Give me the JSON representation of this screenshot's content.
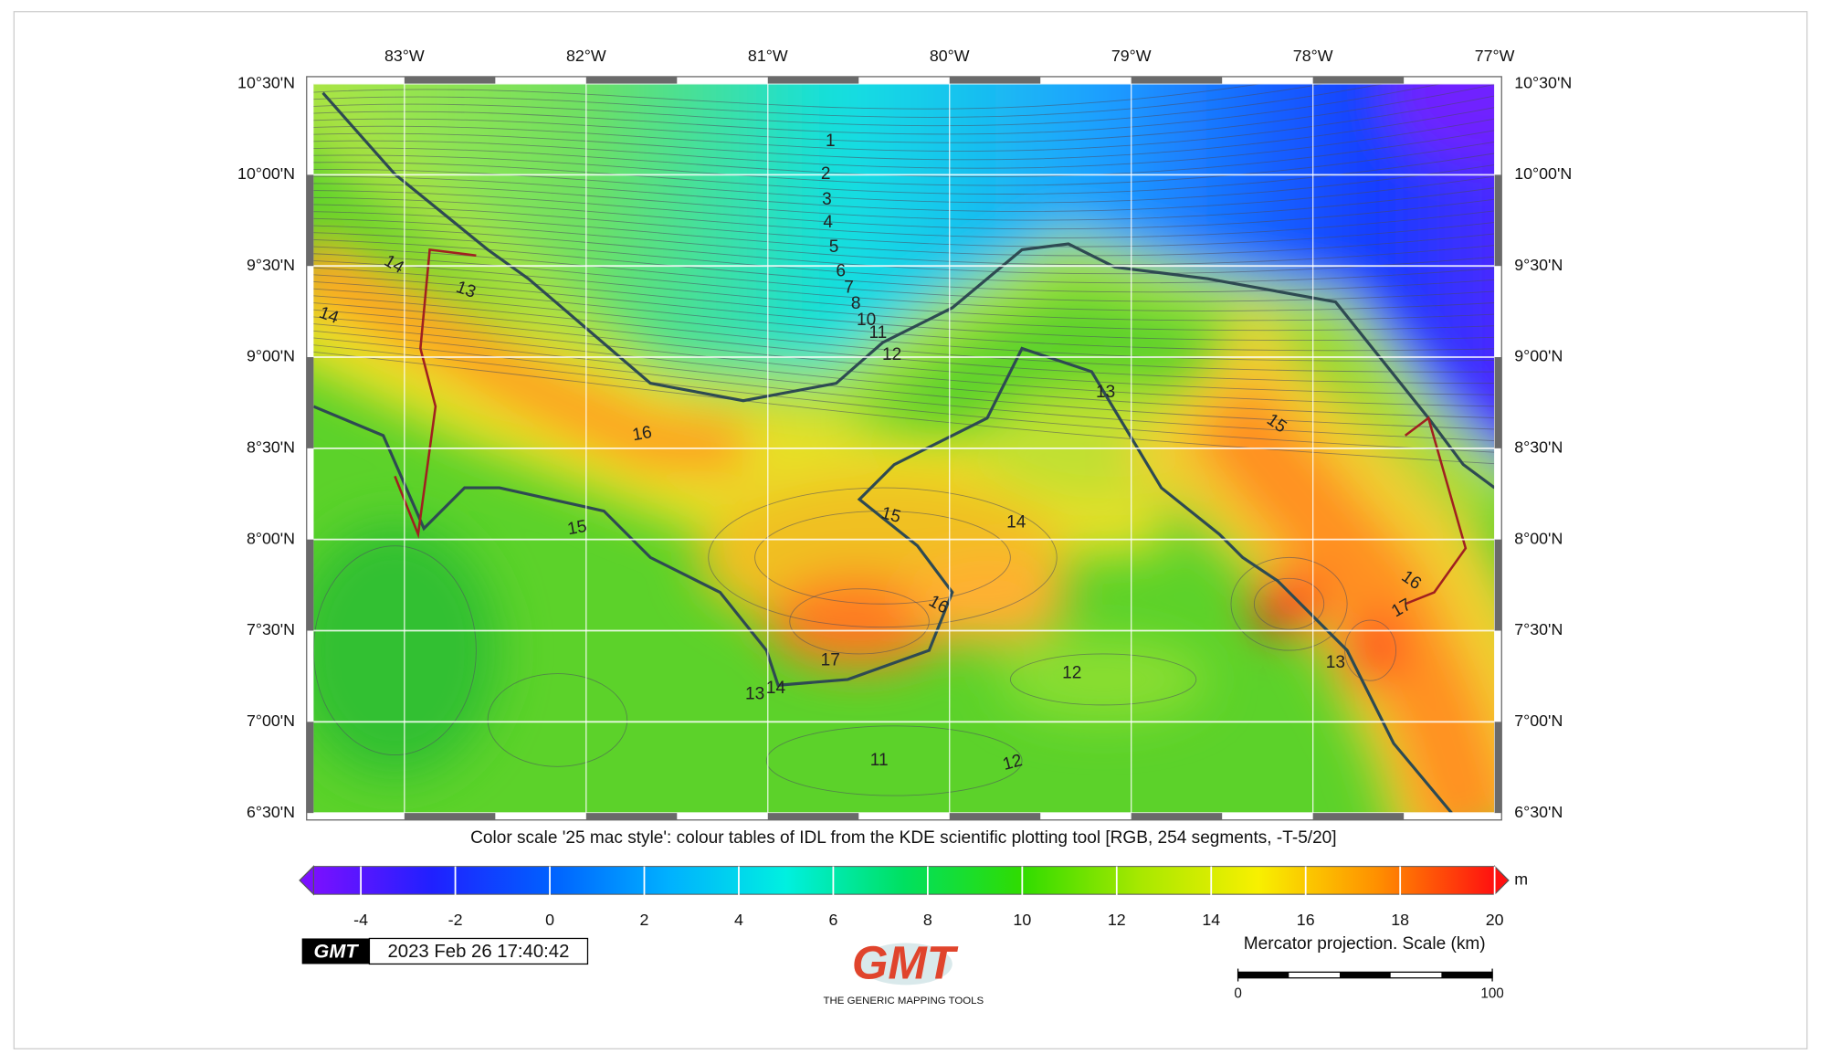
{
  "map": {
    "lonlim": [
      -83.5,
      -77
    ],
    "latlim": [
      6.5,
      10.5
    ],
    "lon_ticks": [
      {
        "value": -83,
        "label": "83°W"
      },
      {
        "value": -82,
        "label": "82°W"
      },
      {
        "value": -81,
        "label": "81°W"
      },
      {
        "value": -80,
        "label": "80°W"
      },
      {
        "value": -79,
        "label": "79°W"
      },
      {
        "value": -78,
        "label": "78°W"
      },
      {
        "value": -77,
        "label": "77°W"
      }
    ],
    "lat_ticks": [
      {
        "value": 6.5,
        "label": "6°30'N"
      },
      {
        "value": 7,
        "label": "7°00'N"
      },
      {
        "value": 7.5,
        "label": "7°30'N"
      },
      {
        "value": 8,
        "label": "8°00'N"
      },
      {
        "value": 8.5,
        "label": "8°30'N"
      },
      {
        "value": 9,
        "label": "9°00'N"
      },
      {
        "value": 9.5,
        "label": "9°30'N"
      },
      {
        "value": 10,
        "label": "10°00'N"
      },
      {
        "value": 10.5,
        "label": "10°30'N"
      }
    ],
    "contour_labels": [
      1,
      2,
      3,
      4,
      5,
      6,
      7,
      8,
      10,
      11,
      12,
      13,
      14,
      13,
      14,
      16,
      15,
      15,
      15,
      14,
      16,
      17,
      13,
      14,
      12,
      11,
      12,
      13,
      16,
      17
    ]
  },
  "colorbar": {
    "title": "Color scale '25 mac style': colour tables of IDL from the KDE scientific plotting tool [RGB, 254 segments, -T-5/20]",
    "unit": "m",
    "lim": [
      -5,
      20
    ],
    "ticks": [
      -4,
      -2,
      0,
      2,
      4,
      6,
      8,
      10,
      12,
      14,
      16,
      18,
      20
    ],
    "colors": [
      "#7a10ff",
      "#2020ff",
      "#0060ff",
      "#00b0ff",
      "#00f0e0",
      "#00e060",
      "#30dc00",
      "#a8e800",
      "#f8f000",
      "#ff9000",
      "#ff1010"
    ]
  },
  "timestamp": {
    "logo": "GMT",
    "text": "2023 Feb 26 17:40:42"
  },
  "logo": {
    "text": "GMT",
    "subtitle": "THE GENERIC MAPPING TOOLS"
  },
  "scale_bar": {
    "title": "Mercator projection. Scale (km)",
    "ticks": [
      0,
      100
    ]
  }
}
